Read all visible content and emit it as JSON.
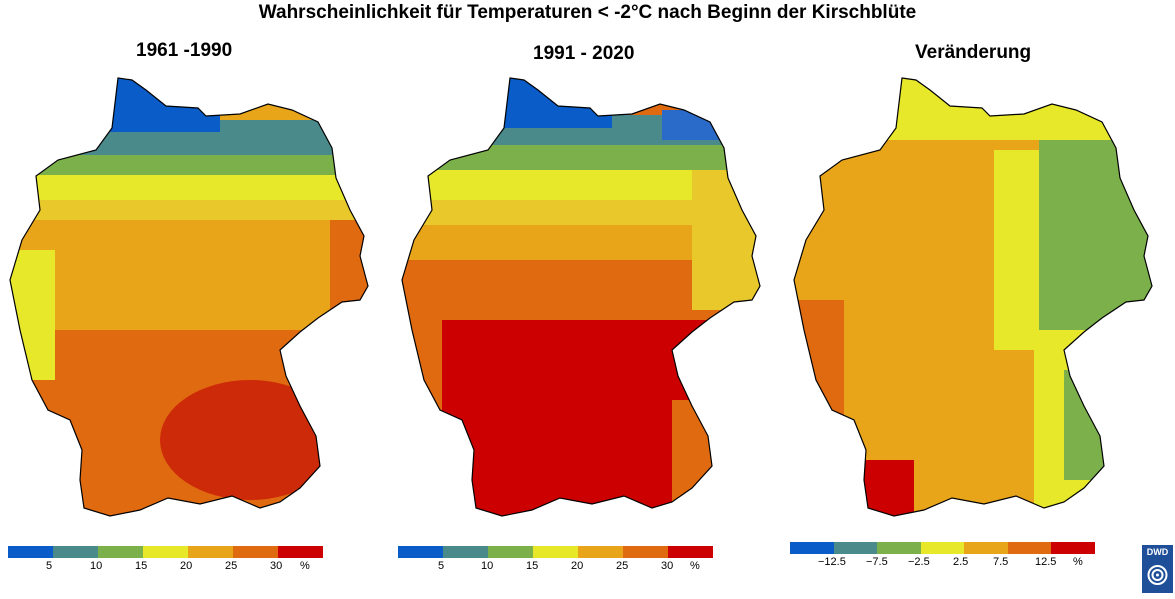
{
  "title": "Wahrscheinlichkeit für Temperaturen < -2°C nach Beginn der Kirschblüte",
  "panels": [
    {
      "title": "1961 -1990",
      "colors": [
        "#0a5cc8",
        "#4a8a8a",
        "#7bb04b",
        "#e8e82a",
        "#e8a51a",
        "#e06a10",
        "#cc0000"
      ],
      "ticks": [
        "5",
        "10",
        "15",
        "20",
        "25",
        "30",
        "%"
      ]
    },
    {
      "title": "1991 - 2020",
      "colors": [
        "#0a5cc8",
        "#4a8a8a",
        "#7bb04b",
        "#e8e82a",
        "#e8a51a",
        "#e06a10",
        "#cc0000"
      ],
      "ticks": [
        "5",
        "10",
        "15",
        "20",
        "25",
        "30",
        "%"
      ]
    },
    {
      "title": "Veränderung",
      "colors": [
        "#0a5cc8",
        "#4a8a8a",
        "#7bb04b",
        "#e8e82a",
        "#e8a51a",
        "#e06a10",
        "#cc0000"
      ],
      "ticks": [
        "−12.5",
        "−7.5",
        "−2.5",
        "2.5",
        "7.5",
        "12.5",
        "%"
      ]
    }
  ],
  "logo_text": "DWD"
}
